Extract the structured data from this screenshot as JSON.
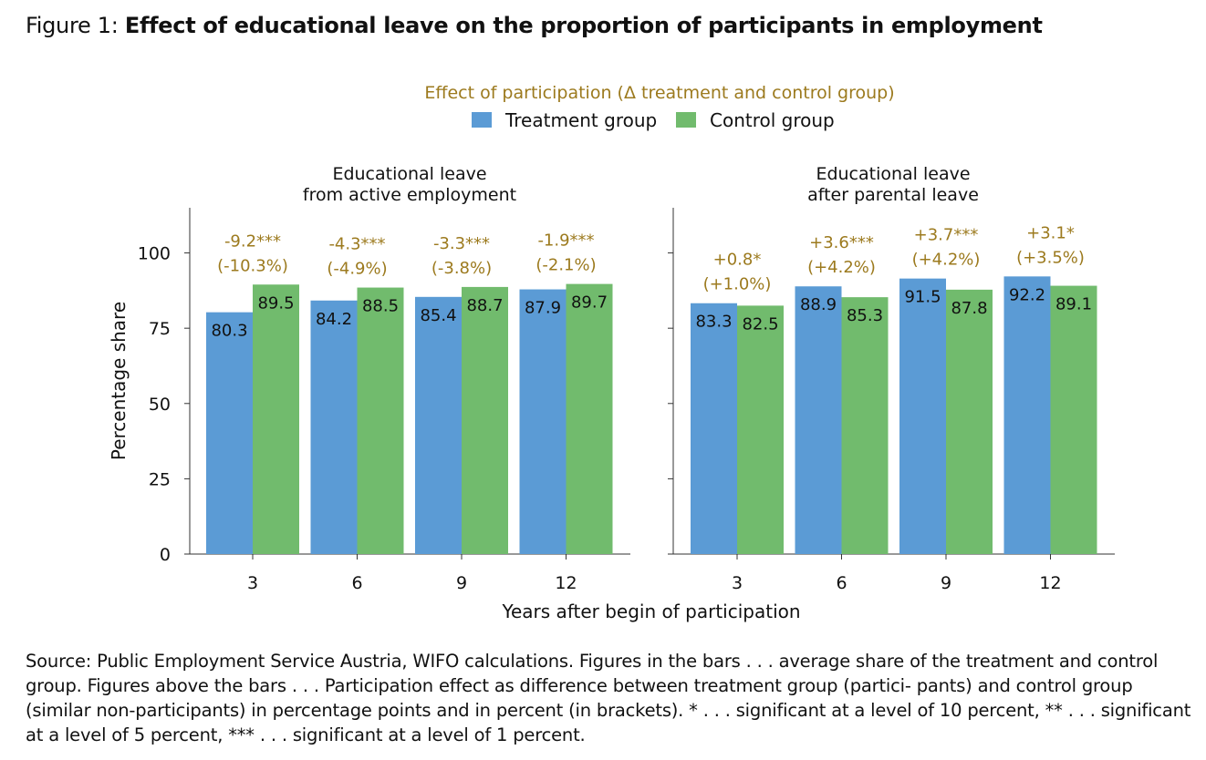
{
  "figure": {
    "prefix": "Figure 1: ",
    "title": "Effect of educational leave on the proportion of participants in employment"
  },
  "colors": {
    "treatment": "#5B9BD5",
    "control": "#71BB6D",
    "effect_text": "#9C7A1E"
  },
  "chart_data": {
    "type": "bar",
    "subtitle": "Effect of participation (Δ treatment and control group)",
    "legend": [
      "Treatment group",
      "Control group"
    ],
    "legend_position": "top-center",
    "xlabel": "Years after begin of participation",
    "ylabel": "Percentage share",
    "ylim": [
      0,
      115
    ],
    "yticks": [
      0,
      25,
      50,
      75,
      100
    ],
    "grid": false,
    "panels": [
      {
        "title": [
          "Educational leave",
          "from active employment"
        ],
        "categories": [
          "3",
          "6",
          "9",
          "12"
        ],
        "series": [
          {
            "name": "Treatment group",
            "values": [
              80.3,
              84.2,
              85.4,
              87.9
            ]
          },
          {
            "name": "Control group",
            "values": [
              89.5,
              88.5,
              88.7,
              89.7
            ]
          }
        ],
        "effects": [
          "-9.2***",
          "-4.3***",
          "-3.3***",
          "-1.9***"
        ],
        "effects_pct": [
          "(-10.3%)",
          "(-4.9%)",
          "(-3.8%)",
          "(-2.1%)"
        ]
      },
      {
        "title": [
          "Educational leave",
          "after parental leave"
        ],
        "categories": [
          "3",
          "6",
          "9",
          "12"
        ],
        "series": [
          {
            "name": "Treatment group",
            "values": [
              83.3,
              88.9,
              91.5,
              92.2
            ]
          },
          {
            "name": "Control group",
            "values": [
              82.5,
              85.3,
              87.8,
              89.1
            ]
          }
        ],
        "effects": [
          "+0.8*",
          "+3.6***",
          "+3.7***",
          "+3.1*"
        ],
        "effects_pct": [
          "(+1.0%)",
          "(+4.2%)",
          "(+4.2%)",
          "(+3.5%)"
        ]
      }
    ]
  },
  "source_note": "Source: Public Employment Service Austria, WIFO calculations. Figures in the bars . . . average share of the treatment and control group. Figures above the bars . . . Participation effect as difference between treatment group (partici- pants) and control group (similar non-participants) in percentage points and in percent (in brackets). * . . . significant at a level of 10 percent, ** . . . significant at a level of 5 percent, *** . . . significant at a level of 1 percent."
}
